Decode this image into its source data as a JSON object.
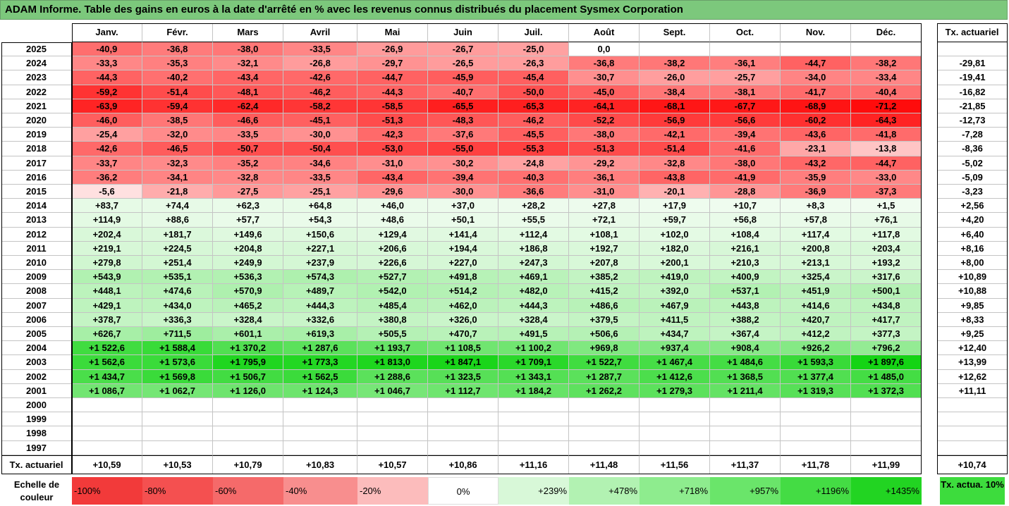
{
  "title": "ADAM Informe. Table des gains en euros à la date d'arrêté en % avec les revenus connus distribués du placement Sysmex Corporation",
  "months": [
    "Janv.",
    "Févr.",
    "Mars",
    "Avril",
    "Mai",
    "Juin",
    "Juil.",
    "Août",
    "Sept.",
    "Oct.",
    "Nov.",
    "Déc."
  ],
  "tx_header": "Tx. actuariel",
  "rows": [
    {
      "year": "2025",
      "values": [
        "-40,9",
        "-36,8",
        "-38,0",
        "-33,5",
        "-26,9",
        "-26,7",
        "-25,0",
        "0,0",
        "",
        "",
        "",
        ""
      ],
      "tx": ""
    },
    {
      "year": "2024",
      "values": [
        "-33,3",
        "-35,3",
        "-32,1",
        "-26,8",
        "-29,7",
        "-26,5",
        "-26,3",
        "-36,8",
        "-38,2",
        "-36,1",
        "-44,7",
        "-38,2"
      ],
      "tx": "-29,81"
    },
    {
      "year": "2023",
      "values": [
        "-44,3",
        "-40,2",
        "-43,4",
        "-42,6",
        "-44,7",
        "-45,9",
        "-45,4",
        "-30,7",
        "-26,0",
        "-25,7",
        "-34,0",
        "-33,4"
      ],
      "tx": "-19,41"
    },
    {
      "year": "2022",
      "values": [
        "-59,2",
        "-51,4",
        "-48,1",
        "-46,2",
        "-44,3",
        "-40,7",
        "-50,0",
        "-45,0",
        "-38,4",
        "-38,1",
        "-41,7",
        "-40,4"
      ],
      "tx": "-16,82"
    },
    {
      "year": "2021",
      "values": [
        "-63,9",
        "-59,4",
        "-62,4",
        "-58,2",
        "-58,5",
        "-65,5",
        "-65,3",
        "-64,1",
        "-68,1",
        "-67,7",
        "-68,9",
        "-71,2"
      ],
      "tx": "-21,85"
    },
    {
      "year": "2020",
      "values": [
        "-46,0",
        "-38,5",
        "-46,6",
        "-45,1",
        "-51,3",
        "-48,3",
        "-46,2",
        "-52,2",
        "-56,9",
        "-56,6",
        "-60,2",
        "-64,3"
      ],
      "tx": "-12,73"
    },
    {
      "year": "2019",
      "values": [
        "-25,4",
        "-32,0",
        "-33,5",
        "-30,0",
        "-42,3",
        "-37,6",
        "-45,5",
        "-38,0",
        "-42,1",
        "-39,4",
        "-43,6",
        "-41,8"
      ],
      "tx": "-7,28"
    },
    {
      "year": "2018",
      "values": [
        "-42,6",
        "-46,5",
        "-50,7",
        "-50,4",
        "-53,0",
        "-55,0",
        "-55,3",
        "-51,3",
        "-51,4",
        "-41,6",
        "-23,1",
        "-13,8"
      ],
      "tx": "-8,36"
    },
    {
      "year": "2017",
      "values": [
        "-33,7",
        "-32,3",
        "-35,2",
        "-34,6",
        "-31,0",
        "-30,2",
        "-24,8",
        "-29,2",
        "-32,8",
        "-38,0",
        "-43,2",
        "-44,7"
      ],
      "tx": "-5,02"
    },
    {
      "year": "2016",
      "values": [
        "-36,2",
        "-34,1",
        "-32,8",
        "-33,5",
        "-43,4",
        "-39,4",
        "-40,3",
        "-36,1",
        "-43,8",
        "-41,9",
        "-35,9",
        "-33,0"
      ],
      "tx": "-5,09"
    },
    {
      "year": "2015",
      "values": [
        "-5,6",
        "-21,8",
        "-27,5",
        "-25,1",
        "-29,6",
        "-30,0",
        "-36,6",
        "-31,0",
        "-20,1",
        "-28,8",
        "-36,9",
        "-37,3"
      ],
      "tx": "-3,23"
    },
    {
      "year": "2014",
      "values": [
        "+83,7",
        "+74,4",
        "+62,3",
        "+64,8",
        "+46,0",
        "+37,0",
        "+28,2",
        "+27,8",
        "+17,9",
        "+10,7",
        "+8,3",
        "+1,5"
      ],
      "tx": "+2,56"
    },
    {
      "year": "2013",
      "values": [
        "+114,9",
        "+88,6",
        "+57,7",
        "+54,3",
        "+48,6",
        "+50,1",
        "+55,5",
        "+72,1",
        "+59,7",
        "+56,8",
        "+57,8",
        "+76,1"
      ],
      "tx": "+4,20"
    },
    {
      "year": "2012",
      "values": [
        "+202,4",
        "+181,7",
        "+149,6",
        "+150,6",
        "+129,4",
        "+141,4",
        "+112,4",
        "+108,1",
        "+102,0",
        "+108,4",
        "+117,4",
        "+117,8"
      ],
      "tx": "+6,40"
    },
    {
      "year": "2011",
      "values": [
        "+219,1",
        "+224,5",
        "+204,8",
        "+227,1",
        "+206,6",
        "+194,4",
        "+186,8",
        "+192,7",
        "+182,0",
        "+216,1",
        "+200,8",
        "+203,4"
      ],
      "tx": "+8,16"
    },
    {
      "year": "2010",
      "values": [
        "+279,8",
        "+251,4",
        "+249,9",
        "+237,9",
        "+226,6",
        "+227,0",
        "+247,3",
        "+207,8",
        "+200,1",
        "+210,3",
        "+213,1",
        "+193,2"
      ],
      "tx": "+8,00"
    },
    {
      "year": "2009",
      "values": [
        "+543,9",
        "+535,1",
        "+536,3",
        "+574,3",
        "+527,7",
        "+491,8",
        "+469,1",
        "+385,2",
        "+419,0",
        "+400,9",
        "+325,4",
        "+317,6"
      ],
      "tx": "+10,89"
    },
    {
      "year": "2008",
      "values": [
        "+448,1",
        "+474,6",
        "+570,9",
        "+489,7",
        "+542,0",
        "+514,2",
        "+482,0",
        "+415,2",
        "+392,0",
        "+537,1",
        "+451,9",
        "+500,1"
      ],
      "tx": "+10,88"
    },
    {
      "year": "2007",
      "values": [
        "+429,1",
        "+434,0",
        "+465,2",
        "+444,3",
        "+485,4",
        "+462,0",
        "+444,3",
        "+486,6",
        "+467,9",
        "+443,8",
        "+414,6",
        "+434,8"
      ],
      "tx": "+9,85"
    },
    {
      "year": "2006",
      "values": [
        "+378,7",
        "+336,3",
        "+328,4",
        "+332,6",
        "+380,8",
        "+326,0",
        "+328,4",
        "+379,5",
        "+411,5",
        "+388,2",
        "+420,7",
        "+417,7"
      ],
      "tx": "+8,33"
    },
    {
      "year": "2005",
      "values": [
        "+626,7",
        "+711,5",
        "+601,1",
        "+619,3",
        "+505,5",
        "+470,7",
        "+491,5",
        "+506,6",
        "+434,7",
        "+367,4",
        "+412,2",
        "+377,3"
      ],
      "tx": "+9,25"
    },
    {
      "year": "2004",
      "values": [
        "+1 522,6",
        "+1 588,4",
        "+1 370,2",
        "+1 287,6",
        "+1 193,7",
        "+1 108,5",
        "+1 100,2",
        "+969,8",
        "+937,4",
        "+908,4",
        "+926,2",
        "+796,2"
      ],
      "tx": "+12,40"
    },
    {
      "year": "2003",
      "values": [
        "+1 562,6",
        "+1 573,6",
        "+1 795,9",
        "+1 773,3",
        "+1 813,0",
        "+1 847,1",
        "+1 709,1",
        "+1 522,7",
        "+1 467,4",
        "+1 484,6",
        "+1 593,3",
        "+1 897,6"
      ],
      "tx": "+13,99"
    },
    {
      "year": "2002",
      "values": [
        "+1 434,7",
        "+1 569,8",
        "+1 506,7",
        "+1 562,5",
        "+1 288,6",
        "+1 323,5",
        "+1 343,1",
        "+1 287,7",
        "+1 412,6",
        "+1 368,5",
        "+1 377,4",
        "+1 485,0"
      ],
      "tx": "+12,62"
    },
    {
      "year": "2001",
      "values": [
        "+1 086,7",
        "+1 062,7",
        "+1 126,0",
        "+1 124,3",
        "+1 046,7",
        "+1 112,7",
        "+1 184,2",
        "+1 262,2",
        "+1 279,3",
        "+1 211,4",
        "+1 319,3",
        "+1 372,3"
      ],
      "tx": "+11,11"
    },
    {
      "year": "2000",
      "values": [
        "",
        "",
        "",
        "",
        "",
        "",
        "",
        "",
        "",
        "",
        "",
        ""
      ],
      "tx": ""
    },
    {
      "year": "1999",
      "values": [
        "",
        "",
        "",
        "",
        "",
        "",
        "",
        "",
        "",
        "",
        "",
        ""
      ],
      "tx": ""
    },
    {
      "year": "1998",
      "values": [
        "",
        "",
        "",
        "",
        "",
        "",
        "",
        "",
        "",
        "",
        "",
        ""
      ],
      "tx": ""
    },
    {
      "year": "1997",
      "values": [
        "",
        "",
        "",
        "",
        "",
        "",
        "",
        "",
        "",
        "",
        "",
        ""
      ],
      "tx": ""
    }
  ],
  "footer": {
    "label": "Tx. actuariel",
    "values": [
      "+10,59",
      "+10,53",
      "+10,79",
      "+10,83",
      "+10,57",
      "+10,86",
      "+11,16",
      "+11,48",
      "+11,56",
      "+11,37",
      "+11,78",
      "+11,99"
    ],
    "tx": "+10,74"
  },
  "legend": {
    "label": "Echelle de couleur",
    "items": [
      {
        "text": "-100%",
        "color": "#f23a3a",
        "align": "left"
      },
      {
        "text": "-80%",
        "color": "#f45050",
        "align": "left"
      },
      {
        "text": "-60%",
        "color": "#f56a6a",
        "align": "left"
      },
      {
        "text": "-40%",
        "color": "#f88e8e",
        "align": "left"
      },
      {
        "text": "-20%",
        "color": "#fcbcbc",
        "align": "left"
      },
      {
        "text": "0%",
        "color": "#ffffff",
        "align": "center"
      },
      {
        "text": "+239%",
        "color": "#d8f8d8",
        "align": "right"
      },
      {
        "text": "+478%",
        "color": "#b2f2b2",
        "align": "right"
      },
      {
        "text": "+718%",
        "color": "#8eec8e",
        "align": "right"
      },
      {
        "text": "+957%",
        "color": "#6ae56a",
        "align": "right"
      },
      {
        "text": "+1196%",
        "color": "#44dc44",
        "align": "right"
      },
      {
        "text": "+1435%",
        "color": "#22d422",
        "align": "right"
      }
    ],
    "tx_label": "Tx. actua. 10%",
    "tx_color": "#3ddc3d"
  }
}
